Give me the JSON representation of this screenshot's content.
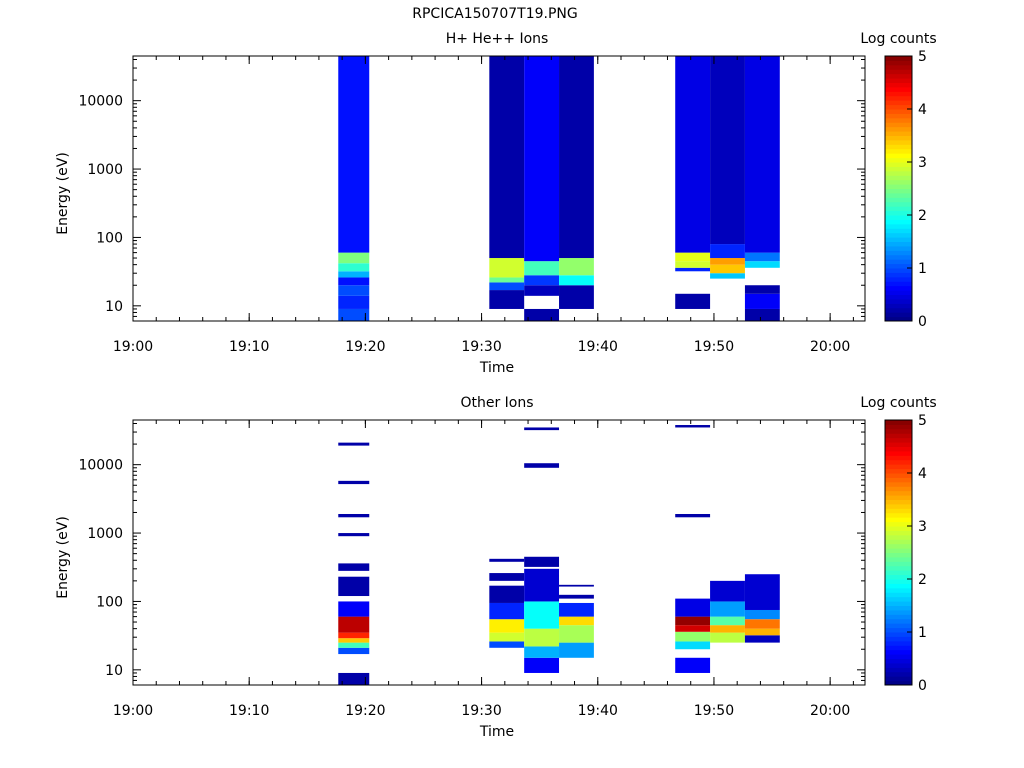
{
  "page_title": "RPCICA150707T19.PNG",
  "colors": {
    "scale": [
      "#00007f",
      "#0000ff",
      "#007fff",
      "#00ffff",
      "#7fff7f",
      "#ffff00",
      "#ff7f00",
      "#ff0000",
      "#7f0000"
    ]
  },
  "chart_data": [
    {
      "type": "heatmap",
      "title": "H+ He++ Ions",
      "xlabel": "Time",
      "ylabel": "Energy (eV)",
      "x_ticks": [
        "19:00",
        "19:10",
        "19:20",
        "19:30",
        "19:40",
        "19:50",
        "20:00"
      ],
      "xlim": [
        "19:00",
        "20:03"
      ],
      "y_scale": "log",
      "y_ticks": [
        "10",
        "100",
        "1000",
        "10000"
      ],
      "ylim": [
        6,
        45000
      ],
      "colorbar": {
        "label": "Log counts",
        "range": [
          0,
          5
        ],
        "ticks": [
          "0",
          "1",
          "2",
          "3",
          "4",
          "5"
        ]
      },
      "columns": [
        {
          "start": "19:17:40",
          "end": "19:20:20",
          "cells": [
            {
              "e_lo": 6,
              "e_hi": 9,
              "value": 1.0
            },
            {
              "e_lo": 9,
              "e_hi": 14,
              "value": 0.8
            },
            {
              "e_lo": 14,
              "e_hi": 20,
              "value": 1.0
            },
            {
              "e_lo": 20,
              "e_hi": 26,
              "value": 0.7
            },
            {
              "e_lo": 26,
              "e_hi": 32,
              "value": 1.5
            },
            {
              "e_lo": 32,
              "e_hi": 42,
              "value": 2.1
            },
            {
              "e_lo": 42,
              "e_hi": 60,
              "value": 2.5
            },
            {
              "e_lo": 60,
              "e_hi": 45000,
              "value": 0.7
            }
          ]
        },
        {
          "start": "19:30:40",
          "end": "19:33:40",
          "cells": [
            {
              "e_lo": 9,
              "e_hi": 17,
              "value": 0.2
            },
            {
              "e_lo": 17,
              "e_hi": 22,
              "value": 1.0
            },
            {
              "e_lo": 22,
              "e_hi": 26,
              "value": 2.4
            },
            {
              "e_lo": 26,
              "e_hi": 50,
              "value": 2.9
            },
            {
              "e_lo": 50,
              "e_hi": 45000,
              "value": 0.2
            }
          ]
        },
        {
          "start": "19:33:40",
          "end": "19:36:40",
          "cells": [
            {
              "e_lo": 6,
              "e_hi": 9,
              "value": 0.2
            },
            {
              "e_lo": 14,
              "e_hi": 20,
              "value": 0.3
            },
            {
              "e_lo": 20,
              "e_hi": 28,
              "value": 0.9
            },
            {
              "e_lo": 28,
              "e_hi": 45,
              "value": 2.2
            },
            {
              "e_lo": 45,
              "e_hi": 45000,
              "value": 0.6
            }
          ]
        },
        {
          "start": "19:36:40",
          "end": "19:39:40",
          "cells": [
            {
              "e_lo": 9,
              "e_hi": 20,
              "value": 0.2
            },
            {
              "e_lo": 20,
              "e_hi": 28,
              "value": 1.9
            },
            {
              "e_lo": 28,
              "e_hi": 50,
              "value": 2.6
            },
            {
              "e_lo": 50,
              "e_hi": 45000,
              "value": 0.2
            }
          ]
        },
        {
          "start": "19:46:40",
          "end": "19:49:40",
          "cells": [
            {
              "e_lo": 9,
              "e_hi": 15,
              "value": 0.2
            },
            {
              "e_lo": 32,
              "e_hi": 36,
              "value": 0.8
            },
            {
              "e_lo": 36,
              "e_hi": 45,
              "value": 2.9
            },
            {
              "e_lo": 45,
              "e_hi": 60,
              "value": 3.0
            },
            {
              "e_lo": 60,
              "e_hi": 45000,
              "value": 0.5
            }
          ]
        },
        {
          "start": "19:49:40",
          "end": "19:52:40",
          "cells": [
            {
              "e_lo": 25,
              "e_hi": 30,
              "value": 1.6
            },
            {
              "e_lo": 30,
              "e_hi": 40,
              "value": 3.4
            },
            {
              "e_lo": 40,
              "e_hi": 50,
              "value": 3.6
            },
            {
              "e_lo": 50,
              "e_hi": 80,
              "value": 0.8
            },
            {
              "e_lo": 80,
              "e_hi": 45000,
              "value": 0.3
            }
          ]
        },
        {
          "start": "19:52:40",
          "end": "19:55:40",
          "cells": [
            {
              "e_lo": 6,
              "e_hi": 9,
              "value": 0.2
            },
            {
              "e_lo": 9,
              "e_hi": 15,
              "value": 0.6
            },
            {
              "e_lo": 15,
              "e_hi": 20,
              "value": 0.2
            },
            {
              "e_lo": 36,
              "e_hi": 45,
              "value": 1.7
            },
            {
              "e_lo": 45,
              "e_hi": 60,
              "value": 1.2
            },
            {
              "e_lo": 60,
              "e_hi": 45000,
              "value": 0.5
            }
          ]
        }
      ]
    },
    {
      "type": "heatmap",
      "title": "Other Ions",
      "xlabel": "Time",
      "ylabel": "Energy (eV)",
      "x_ticks": [
        "19:00",
        "19:10",
        "19:20",
        "19:30",
        "19:40",
        "19:50",
        "20:00"
      ],
      "xlim": [
        "19:00",
        "20:03"
      ],
      "y_scale": "log",
      "y_ticks": [
        "10",
        "100",
        "1000",
        "10000"
      ],
      "ylim": [
        6,
        45000
      ],
      "colorbar": {
        "label": "Log counts",
        "range": [
          0,
          5
        ],
        "ticks": [
          "0",
          "1",
          "2",
          "3",
          "4",
          "5"
        ]
      },
      "columns": [
        {
          "start": "19:17:40",
          "end": "19:20:20",
          "cells": [
            {
              "e_lo": 6,
              "e_hi": 9,
              "value": 0.2
            },
            {
              "e_lo": 17,
              "e_hi": 21,
              "value": 1.0
            },
            {
              "e_lo": 21,
              "e_hi": 25,
              "value": 2.2
            },
            {
              "e_lo": 25,
              "e_hi": 29,
              "value": 3.4
            },
            {
              "e_lo": 29,
              "e_hi": 35,
              "value": 4.2
            },
            {
              "e_lo": 35,
              "e_hi": 60,
              "value": 4.7
            },
            {
              "e_lo": 60,
              "e_hi": 100,
              "value": 0.6
            },
            {
              "e_lo": 120,
              "e_hi": 230,
              "value": 0.2
            },
            {
              "e_lo": 280,
              "e_hi": 360,
              "value": 0.2
            },
            {
              "e_lo": 900,
              "e_hi": 1000,
              "value": 0.2
            },
            {
              "e_lo": 1700,
              "e_hi": 1900,
              "value": 0.2
            },
            {
              "e_lo": 5200,
              "e_hi": 5800,
              "value": 0.2
            },
            {
              "e_lo": 19000,
              "e_hi": 21000,
              "value": 0.2
            }
          ]
        },
        {
          "start": "19:30:40",
          "end": "19:33:40",
          "cells": [
            {
              "e_lo": 21,
              "e_hi": 26,
              "value": 1.0
            },
            {
              "e_lo": 26,
              "e_hi": 35,
              "value": 2.9
            },
            {
              "e_lo": 35,
              "e_hi": 55,
              "value": 3.2
            },
            {
              "e_lo": 55,
              "e_hi": 95,
              "value": 0.8
            },
            {
              "e_lo": 95,
              "e_hi": 170,
              "value": 0.2
            },
            {
              "e_lo": 200,
              "e_hi": 260,
              "value": 0.2
            },
            {
              "e_lo": 380,
              "e_hi": 420,
              "value": 0.2
            }
          ]
        },
        {
          "start": "19:33:40",
          "end": "19:36:40",
          "cells": [
            {
              "e_lo": 9,
              "e_hi": 15,
              "value": 0.6
            },
            {
              "e_lo": 15,
              "e_hi": 22,
              "value": 1.5
            },
            {
              "e_lo": 22,
              "e_hi": 40,
              "value": 2.8
            },
            {
              "e_lo": 40,
              "e_hi": 100,
              "value": 1.9
            },
            {
              "e_lo": 100,
              "e_hi": 300,
              "value": 0.4
            },
            {
              "e_lo": 320,
              "e_hi": 450,
              "value": 0.2
            },
            {
              "e_lo": 9000,
              "e_hi": 10500,
              "value": 0.2
            },
            {
              "e_lo": 32000,
              "e_hi": 35000,
              "value": 0.2
            }
          ]
        },
        {
          "start": "19:36:40",
          "end": "19:39:40",
          "cells": [
            {
              "e_lo": 15,
              "e_hi": 25,
              "value": 1.4
            },
            {
              "e_lo": 25,
              "e_hi": 45,
              "value": 2.7
            },
            {
              "e_lo": 45,
              "e_hi": 60,
              "value": 3.3
            },
            {
              "e_lo": 60,
              "e_hi": 95,
              "value": 0.8
            },
            {
              "e_lo": 110,
              "e_hi": 125,
              "value": 0.2
            },
            {
              "e_lo": 165,
              "e_hi": 175,
              "value": 0.2
            }
          ]
        },
        {
          "start": "19:46:40",
          "end": "19:49:40",
          "cells": [
            {
              "e_lo": 9,
              "e_hi": 15,
              "value": 0.6
            },
            {
              "e_lo": 20,
              "e_hi": 26,
              "value": 1.7
            },
            {
              "e_lo": 26,
              "e_hi": 36,
              "value": 2.6
            },
            {
              "e_lo": 36,
              "e_hi": 45,
              "value": 4.6
            },
            {
              "e_lo": 45,
              "e_hi": 60,
              "value": 4.9
            },
            {
              "e_lo": 60,
              "e_hi": 110,
              "value": 0.5
            },
            {
              "e_lo": 1700,
              "e_hi": 1900,
              "value": 0.2
            },
            {
              "e_lo": 35000,
              "e_hi": 38000,
              "value": 0.2
            }
          ]
        },
        {
          "start": "19:49:40",
          "end": "19:52:40",
          "cells": [
            {
              "e_lo": 25,
              "e_hi": 35,
              "value": 2.8
            },
            {
              "e_lo": 35,
              "e_hi": 45,
              "value": 3.5
            },
            {
              "e_lo": 45,
              "e_hi": 60,
              "value": 2.3
            },
            {
              "e_lo": 60,
              "e_hi": 100,
              "value": 1.4
            },
            {
              "e_lo": 100,
              "e_hi": 200,
              "value": 0.4
            }
          ]
        },
        {
          "start": "19:52:40",
          "end": "19:55:40",
          "cells": [
            {
              "e_lo": 25,
              "e_hi": 32,
              "value": 0.3
            },
            {
              "e_lo": 32,
              "e_hi": 40,
              "value": 3.5
            },
            {
              "e_lo": 40,
              "e_hi": 55,
              "value": 3.8
            },
            {
              "e_lo": 55,
              "e_hi": 75,
              "value": 1.3
            },
            {
              "e_lo": 75,
              "e_hi": 250,
              "value": 0.4
            }
          ]
        }
      ]
    }
  ]
}
